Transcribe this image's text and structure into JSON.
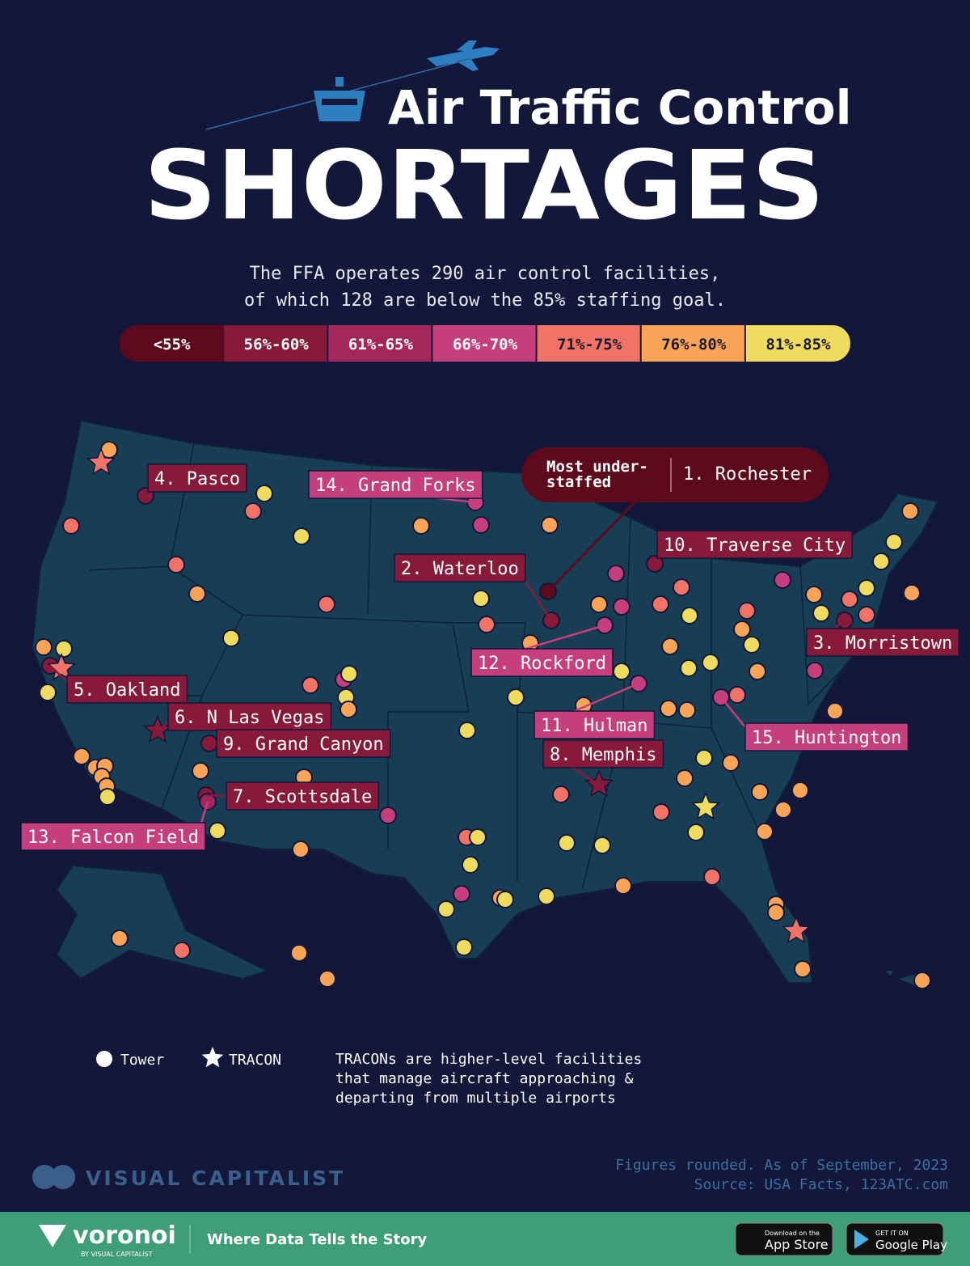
{
  "header": {
    "title_line1": "Air Traffic Control",
    "title_line2": "SHORTAGES",
    "subtitle_line1": "The FFA operates 290 air control facilities,",
    "subtitle_line2": "of which 128 are below the 85% staffing goal."
  },
  "legend": {
    "bins": [
      {
        "label": "<55%",
        "color": "#5e0a1d"
      },
      {
        "label": "56%-60%",
        "color": "#871a3b"
      },
      {
        "label": "61%-65%",
        "color": "#a3275a"
      },
      {
        "label": "66%-70%",
        "color": "#c53f7c"
      },
      {
        "label": "71%-75%",
        "color": "#f07366"
      },
      {
        "label": "76%-80%",
        "color": "#f9a457"
      },
      {
        "label": "81%-85%",
        "color": "#efdc5e"
      }
    ]
  },
  "callout": {
    "heading_line1": "Most under-",
    "heading_line2": "staffed",
    "label": "1. Rochester",
    "color": "#5e0a1d"
  },
  "labels": [
    {
      "text": "2. Waterloo",
      "color": "#871a3b"
    },
    {
      "text": "3. Morristown",
      "color": "#871a3b"
    },
    {
      "text": "4. Pasco",
      "color": "#871a3b"
    },
    {
      "text": "5. Oakland",
      "color": "#871a3b"
    },
    {
      "text": "6. N Las Vegas",
      "color": "#871a3b"
    },
    {
      "text": "7. Scottsdale",
      "color": "#871a3b"
    },
    {
      "text": "8. Memphis",
      "color": "#871a3b"
    },
    {
      "text": "9. Grand Canyon",
      "color": "#871a3b"
    },
    {
      "text": "10. Traverse City",
      "color": "#871a3b"
    },
    {
      "text": "11. Hulman",
      "color": "#c53f7c"
    },
    {
      "text": "12. Rockford",
      "color": "#c53f7c"
    },
    {
      "text": "13. Falcon Field",
      "color": "#c53f7c"
    },
    {
      "text": "14. Grand Forks",
      "color": "#c53f7c"
    },
    {
      "text": "15. Huntington",
      "color": "#c53f7c"
    }
  ],
  "shape_legend": {
    "tower": "Tower",
    "tracon": "TRACON",
    "note_lines": [
      "TRACONs are higher-level facilities",
      "that manage aircraft approaching &",
      "departing from multiple airports"
    ]
  },
  "footer": {
    "brand": "VISUAL CAPITALIST",
    "note": "Figures rounded. As of September, 2023",
    "source": "Source: USA Facts, 123ATC.com"
  },
  "bottom_bar": {
    "brand": "voronoi",
    "brand_sub": "BY VISUAL CAPITALIST",
    "tagline": "Where Data Tells the Story",
    "app_store_small": "Download on the",
    "app_store": "App Store",
    "google_play_small": "GET IT ON",
    "google_play": "Google Play"
  }
}
